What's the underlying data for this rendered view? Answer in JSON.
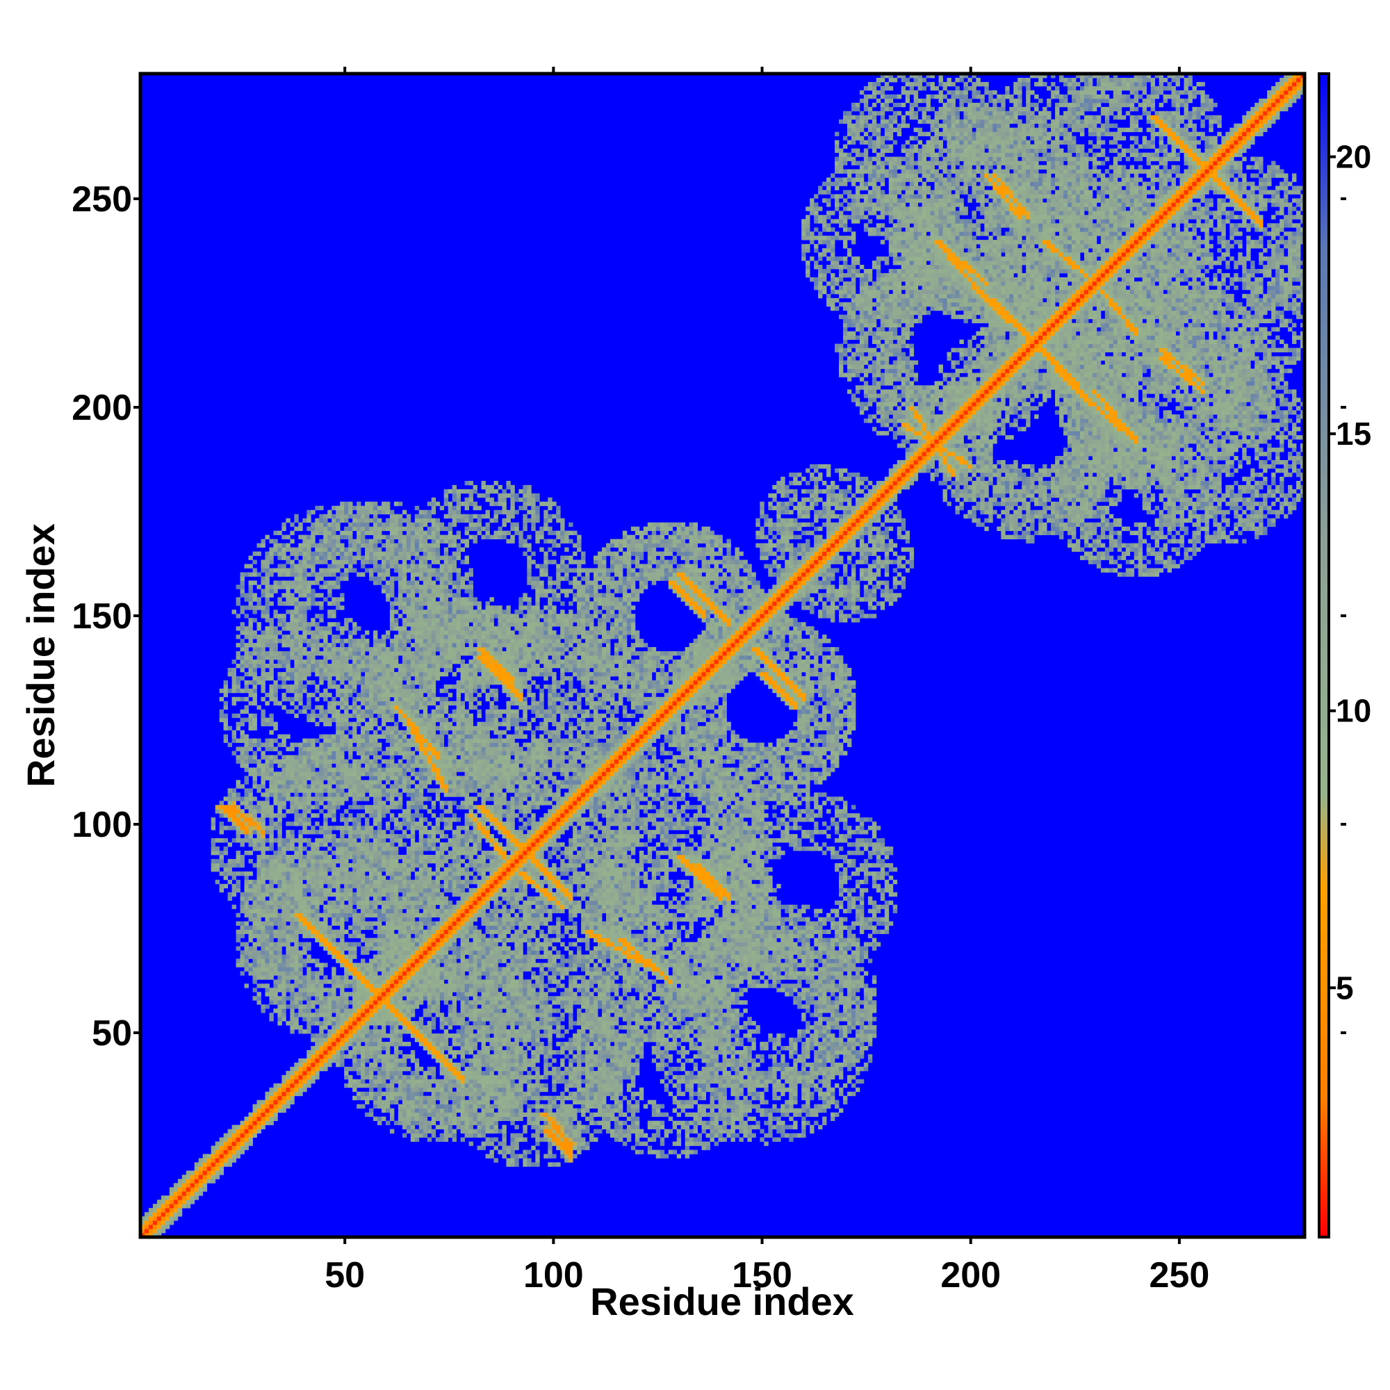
{
  "chart_data": {
    "type": "heatmap",
    "title": "",
    "xlabel": "Residue index",
    "ylabel": "Residue index",
    "xlim": [
      1,
      280
    ],
    "ylim": [
      1,
      280
    ],
    "x_ticks": [
      50,
      100,
      150,
      200,
      250
    ],
    "y_ticks": [
      50,
      100,
      150,
      200,
      250
    ],
    "grid": false,
    "colorbar": {
      "ticks": [
        5,
        10,
        15,
        20
      ],
      "range": [
        0.5,
        21.5
      ],
      "colors": [
        "#ff0000",
        "#ff7f00",
        "#ffa000",
        "#96b48c",
        "#8ca096",
        "#5a78b4",
        "#0000ff"
      ],
      "stops": [
        0.0,
        0.12,
        0.3,
        0.38,
        0.6,
        0.85,
        1.0
      ]
    },
    "background_value": 21,
    "main_diagonal": {
      "start": 1,
      "end": 280,
      "value": 1.5
    },
    "domains": [
      {
        "name": "",
        "range": [
          20,
          180
        ]
      },
      {
        "name": "",
        "range": [
          160,
          280
        ]
      }
    ],
    "contact_bands": [
      {
        "from": [
          38,
          78
        ],
        "to": [
          72,
          44
        ],
        "value": 6
      },
      {
        "from": [
          20,
          104
        ],
        "to": [
          26,
          98
        ],
        "value": 5
      },
      {
        "from": [
          98,
          30
        ],
        "to": [
          104,
          22
        ],
        "value": 5
      },
      {
        "from": [
          62,
          128
        ],
        "to": [
          72,
          116
        ],
        "value": 6
      },
      {
        "from": [
          82,
          104
        ],
        "to": [
          92,
          94
        ],
        "value": 6
      },
      {
        "from": [
          82,
          142
        ],
        "to": [
          90,
          134
        ],
        "value": 6
      },
      {
        "from": [
          92,
          88
        ],
        "to": [
          102,
          80
        ],
        "value": 6
      },
      {
        "from": [
          108,
          74
        ],
        "to": [
          126,
          64
        ],
        "value": 6
      },
      {
        "from": [
          130,
          92
        ],
        "to": [
          140,
          82
        ],
        "value": 6
      },
      {
        "from": [
          130,
          160
        ],
        "to": [
          142,
          148
        ],
        "value": 6
      },
      {
        "from": [
          150,
          136
        ],
        "to": [
          158,
          128
        ],
        "value": 6
      },
      {
        "from": [
          186,
          200
        ],
        "to": [
          196,
          184
        ],
        "value": 6
      },
      {
        "from": [
          192,
          240
        ],
        "to": [
          204,
          226
        ],
        "value": 6
      },
      {
        "from": [
          206,
          256
        ],
        "to": [
          214,
          246
        ],
        "value": 6
      },
      {
        "from": [
          204,
          226
        ],
        "to": [
          226,
          206
        ],
        "value": 6
      },
      {
        "from": [
          230,
          204
        ],
        "to": [
          240,
          192
        ],
        "value": 6
      },
      {
        "from": [
          244,
          270
        ],
        "to": [
          256,
          258
        ],
        "value": 6
      },
      {
        "from": [
          258,
          256
        ],
        "to": [
          268,
          246
        ],
        "value": 6
      },
      {
        "from": [
          232,
          228
        ],
        "to": [
          240,
          218
        ],
        "value": 6
      },
      {
        "from": [
          246,
          212
        ],
        "to": [
          256,
          204
        ],
        "value": 6
      }
    ],
    "contact_clusters": [
      {
        "center": [
          50,
          150
        ],
        "radius": 26
      },
      {
        "center": [
          80,
          132
        ],
        "radius": 22
      },
      {
        "center": [
          55,
          96
        ],
        "radius": 26
      },
      {
        "center": [
          50,
          75
        ],
        "radius": 24
      },
      {
        "center": [
          72,
          48
        ],
        "radius": 24
      },
      {
        "center": [
          95,
          40
        ],
        "radius": 22
      },
      {
        "center": [
          128,
          40
        ],
        "radius": 20
      },
      {
        "center": [
          155,
          58
        ],
        "radius": 22
      },
      {
        "center": [
          160,
          85
        ],
        "radius": 22
      },
      {
        "center": [
          128,
          90
        ],
        "radius": 24
      },
      {
        "center": [
          105,
          75
        ],
        "radius": 20
      },
      {
        "center": [
          100,
          128
        ],
        "radius": 22
      },
      {
        "center": [
          128,
          150
        ],
        "radius": 22
      },
      {
        "center": [
          150,
          128
        ],
        "radius": 22
      },
      {
        "center": [
          170,
          165
        ],
        "radius": 16
      },
      {
        "center": [
          195,
          215
        ],
        "radius": 26
      },
      {
        "center": [
          205,
          245
        ],
        "radius": 24
      },
      {
        "center": [
          225,
          258
        ],
        "radius": 24
      },
      {
        "center": [
          235,
          225
        ],
        "radius": 22
      },
      {
        "center": [
          250,
          205
        ],
        "radius": 24
      },
      {
        "center": [
          260,
          190
        ],
        "radius": 22
      },
      {
        "center": [
          265,
          240
        ],
        "radius": 20
      },
      {
        "center": [
          215,
          195
        ],
        "radius": 22
      },
      {
        "center": [
          240,
          180
        ],
        "radius": 20
      }
    ]
  }
}
